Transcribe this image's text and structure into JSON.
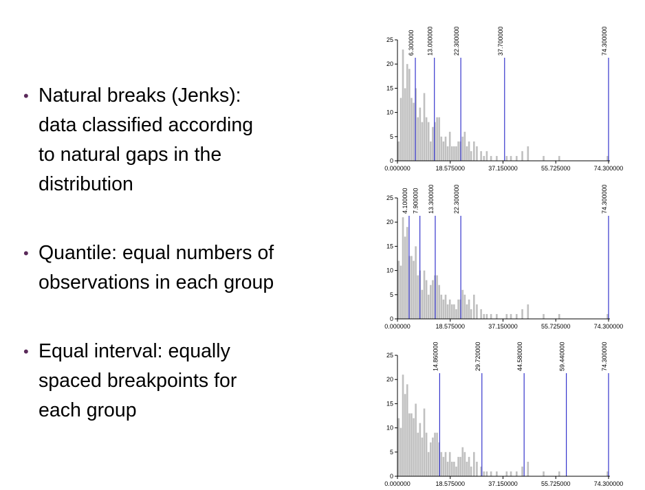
{
  "slide": {
    "bullets": [
      {
        "text": "Natural breaks (Jenks):\ndata classified according\nto natural gaps in the\ndistribution"
      },
      {
        "text": "Quantile: equal numbers of\nobservations in each group"
      },
      {
        "text": "Equal interval: equally\nspaced breakpoints for\neach group"
      }
    ]
  },
  "chart_data": [
    {
      "type": "bar",
      "xlim": [
        0,
        74.3
      ],
      "ylim": [
        0,
        25
      ],
      "x_ticks": [
        0,
        18.575,
        37.15,
        55.725,
        74.3
      ],
      "x_tick_labels": [
        "0.000000",
        "18.575000",
        "37.150000",
        "55.725000",
        "74.300000"
      ],
      "y_ticks": [
        0,
        5,
        10,
        15,
        20,
        25
      ],
      "y_tick_labels": [
        "0",
        "5",
        "10",
        "15",
        "20",
        "25"
      ],
      "breaks": [
        6.3,
        13.0,
        22.3,
        37.7,
        74.3
      ],
      "break_labels": [
        "6.300000",
        "13.000000",
        "22.300000",
        "37.700000",
        "74.300000"
      ],
      "bar_color": "#c0c0c0",
      "break_color": "#3333cc",
      "grid": false,
      "bin_width": 0.75,
      "bins": [
        [
          0.5,
          4
        ],
        [
          1.25,
          13
        ],
        [
          2,
          23
        ],
        [
          2.75,
          15
        ],
        [
          3.5,
          20
        ],
        [
          4.25,
          19
        ],
        [
          5,
          13
        ],
        [
          5.75,
          12
        ],
        [
          6.5,
          15
        ],
        [
          7.25,
          9
        ],
        [
          8,
          11
        ],
        [
          8.75,
          8
        ],
        [
          9.5,
          14
        ],
        [
          10.25,
          9
        ],
        [
          11,
          8
        ],
        [
          11.75,
          4
        ],
        [
          12.5,
          7
        ],
        [
          13.25,
          8
        ],
        [
          14,
          9
        ],
        [
          14.75,
          9
        ],
        [
          15.5,
          5
        ],
        [
          16.25,
          4
        ],
        [
          17,
          5
        ],
        [
          17.75,
          3
        ],
        [
          18.5,
          6
        ],
        [
          19.25,
          3
        ],
        [
          20,
          3
        ],
        [
          20.75,
          3
        ],
        [
          21.5,
          4
        ],
        [
          22.25,
          4
        ],
        [
          23,
          5
        ],
        [
          23.75,
          6
        ],
        [
          24.5,
          3
        ],
        [
          25.25,
          4
        ],
        [
          26,
          2
        ],
        [
          27,
          4
        ],
        [
          28,
          3
        ],
        [
          29.5,
          2
        ],
        [
          30.5,
          1
        ],
        [
          31.5,
          2
        ],
        [
          33,
          1
        ],
        [
          35,
          1
        ],
        [
          38.5,
          1
        ],
        [
          40,
          1
        ],
        [
          42,
          1
        ],
        [
          44,
          2
        ],
        [
          46,
          3
        ],
        [
          51.5,
          1
        ],
        [
          57,
          1
        ],
        [
          74,
          1
        ]
      ]
    },
    {
      "type": "bar",
      "xlim": [
        0,
        74.3
      ],
      "ylim": [
        0,
        25
      ],
      "x_ticks": [
        0,
        18.575,
        37.15,
        55.725,
        74.3
      ],
      "x_tick_labels": [
        "0.000000",
        "18.575000",
        "37.150000",
        "55.725000",
        "74.300000"
      ],
      "y_ticks": [
        0,
        5,
        10,
        15,
        20,
        25
      ],
      "y_tick_labels": [
        "0",
        "5",
        "10",
        "15",
        "20",
        "25"
      ],
      "breaks": [
        4.1,
        7.9,
        13.3,
        22.3,
        74.3
      ],
      "break_labels": [
        "4.100000",
        "7.900000",
        "13.300000",
        "22.300000",
        "74.300000"
      ],
      "bar_color": "#c0c0c0",
      "break_color": "#3333cc",
      "grid": false,
      "bin_width": 0.75,
      "bins": [
        [
          0.5,
          12
        ],
        [
          1.25,
          11
        ],
        [
          2,
          21
        ],
        [
          2.75,
          17
        ],
        [
          3.5,
          19
        ],
        [
          4.25,
          13
        ],
        [
          5,
          13
        ],
        [
          5.75,
          12
        ],
        [
          6.5,
          15
        ],
        [
          7.25,
          9
        ],
        [
          8,
          10
        ],
        [
          8.75,
          6
        ],
        [
          9.5,
          10
        ],
        [
          10.25,
          8
        ],
        [
          11,
          5
        ],
        [
          11.75,
          7
        ],
        [
          12.5,
          8
        ],
        [
          13.25,
          9
        ],
        [
          14,
          9
        ],
        [
          14.75,
          7
        ],
        [
          15.5,
          5
        ],
        [
          16.25,
          4
        ],
        [
          17,
          5
        ],
        [
          17.75,
          3
        ],
        [
          18.5,
          4
        ],
        [
          19.25,
          3
        ],
        [
          20,
          3
        ],
        [
          20.75,
          2
        ],
        [
          21.5,
          4
        ],
        [
          22.25,
          4
        ],
        [
          23,
          6
        ],
        [
          23.75,
          5
        ],
        [
          24.5,
          3
        ],
        [
          25.25,
          4
        ],
        [
          26,
          2
        ],
        [
          27,
          5
        ],
        [
          28,
          3
        ],
        [
          29.5,
          2
        ],
        [
          30.5,
          1
        ],
        [
          31.5,
          1
        ],
        [
          33,
          1
        ],
        [
          35,
          1
        ],
        [
          38.5,
          1
        ],
        [
          40,
          1
        ],
        [
          42,
          1
        ],
        [
          44,
          2
        ],
        [
          46,
          3
        ],
        [
          51.5,
          1
        ],
        [
          57,
          1
        ],
        [
          74,
          1
        ]
      ]
    },
    {
      "type": "bar",
      "xlim": [
        0,
        74.3
      ],
      "ylim": [
        0,
        25
      ],
      "x_ticks": [
        0,
        18.575,
        37.15,
        55.725,
        74.3
      ],
      "x_tick_labels": [
        "0.000000",
        "18.575000",
        "37.150000",
        "55.725000",
        "74.300000"
      ],
      "y_ticks": [
        0,
        5,
        10,
        15,
        20,
        25
      ],
      "y_tick_labels": [
        "0",
        "5",
        "10",
        "15",
        "20",
        "25"
      ],
      "breaks": [
        14.86,
        29.72,
        44.58,
        59.44,
        74.3
      ],
      "break_labels": [
        "14.860000",
        "29.720000",
        "44.580000",
        "59.440000",
        "74.300000"
      ],
      "bar_color": "#c0c0c0",
      "break_color": "#3333cc",
      "grid": false,
      "bin_width": 0.75,
      "bins": [
        [
          0.5,
          12
        ],
        [
          1.25,
          10
        ],
        [
          2,
          21
        ],
        [
          2.75,
          17
        ],
        [
          3.5,
          19
        ],
        [
          4.25,
          13
        ],
        [
          5,
          13
        ],
        [
          5.75,
          12
        ],
        [
          6.5,
          15
        ],
        [
          7.25,
          9
        ],
        [
          8,
          11
        ],
        [
          8.75,
          8
        ],
        [
          9.5,
          14
        ],
        [
          10.25,
          9
        ],
        [
          11,
          5
        ],
        [
          11.75,
          7
        ],
        [
          12.5,
          8
        ],
        [
          13.25,
          9
        ],
        [
          14,
          9
        ],
        [
          14.75,
          7
        ],
        [
          15.5,
          5
        ],
        [
          16.25,
          4
        ],
        [
          17,
          5
        ],
        [
          17.75,
          3
        ],
        [
          18.5,
          5
        ],
        [
          19.25,
          3
        ],
        [
          20,
          3
        ],
        [
          20.75,
          2
        ],
        [
          21.5,
          4
        ],
        [
          22.25,
          4
        ],
        [
          23,
          6
        ],
        [
          23.75,
          5
        ],
        [
          24.5,
          3
        ],
        [
          25.25,
          4
        ],
        [
          26,
          2
        ],
        [
          27,
          5
        ],
        [
          28,
          3
        ],
        [
          29.5,
          2
        ],
        [
          30.5,
          1
        ],
        [
          31.5,
          1
        ],
        [
          33,
          1
        ],
        [
          35,
          1
        ],
        [
          38.5,
          1
        ],
        [
          40,
          1
        ],
        [
          42,
          1
        ],
        [
          44,
          2
        ],
        [
          46,
          3
        ],
        [
          51.5,
          1
        ],
        [
          57,
          1
        ],
        [
          74,
          1
        ]
      ]
    }
  ]
}
